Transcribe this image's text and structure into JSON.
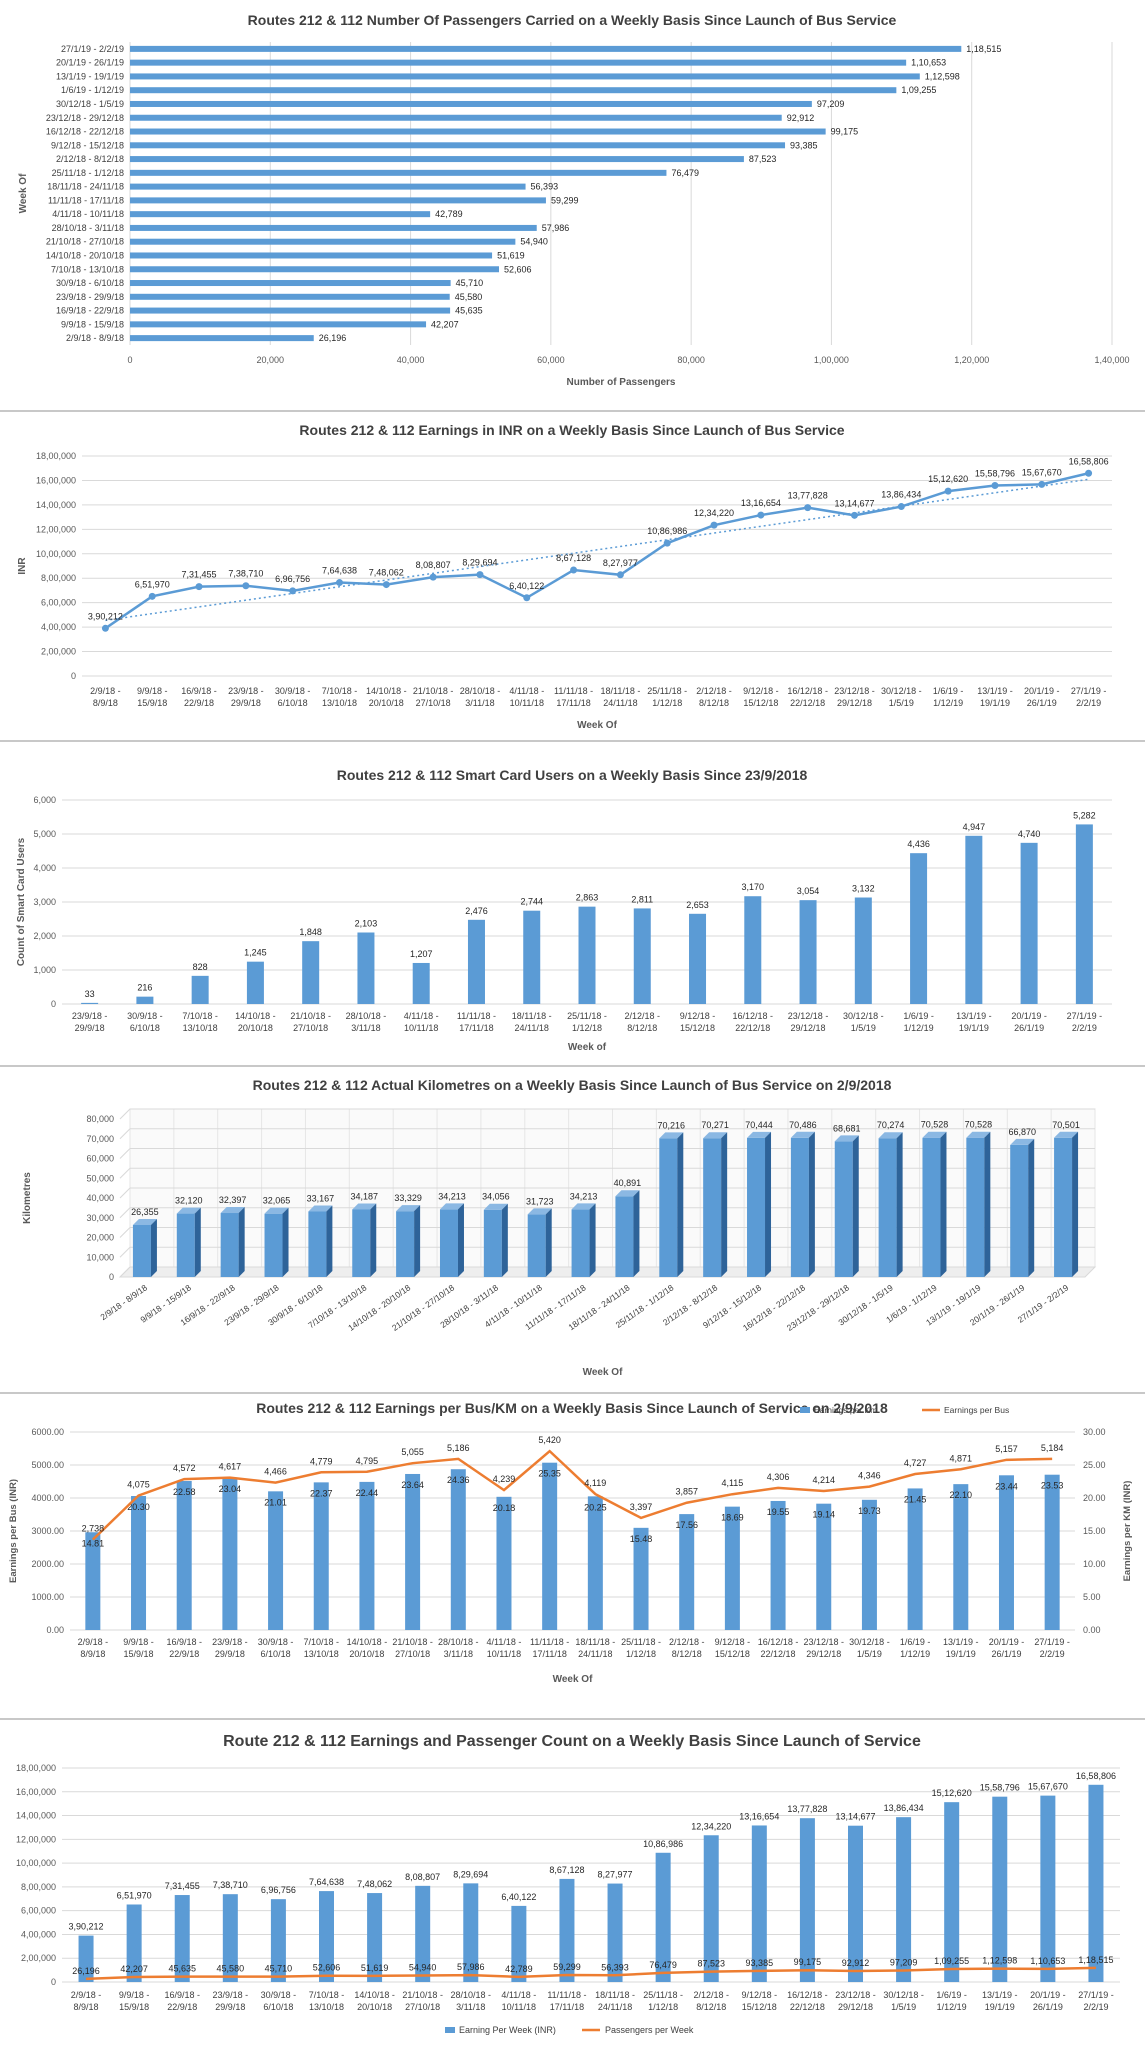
{
  "chart_data": [
    {
      "type": "bar",
      "orientation": "horizontal",
      "title": "Routes 212 & 112 Number Of Passengers Carried on a Weekly Basis Since Launch of Bus Service",
      "xlabel": "Number of Passengers",
      "ylabel": "Week Of",
      "xlim": [
        0,
        140000
      ],
      "x_ticks": [
        "0",
        "20,000",
        "40,000",
        "60,000",
        "80,000",
        "1,00,000",
        "1,20,000",
        "1,40,000"
      ],
      "categories": [
        "27/1/19 - 2/2/19",
        "20/1/19 - 26/1/19",
        "13/1/19 - 19/1/19",
        "1/6/19 - 1/12/19",
        "30/12/18 - 1/5/19",
        "23/12/18 - 29/12/18",
        "16/12/18 - 22/12/18",
        "9/12/18 - 15/12/18",
        "2/12/18 - 8/12/18",
        "25/11/18 - 1/12/18",
        "18/11/18 - 24/11/18",
        "11/11/18 - 17/11/18",
        "4/11/18 - 10/11/18",
        "28/10/18 - 3/11/18",
        "21/10/18 - 27/10/18",
        "14/10/18 - 20/10/18",
        "7/10/18 - 13/10/18",
        "30/9/18 - 6/10/18",
        "23/9/18 - 29/9/18",
        "16/9/18 - 22/9/18",
        "9/9/18 - 15/9/18",
        "2/9/18 - 8/9/18"
      ],
      "values": [
        118515,
        110653,
        112598,
        109255,
        97209,
        92912,
        99175,
        93385,
        87523,
        76479,
        56393,
        59299,
        42789,
        57986,
        54940,
        51619,
        52606,
        45710,
        45580,
        45635,
        42207,
        26196
      ],
      "labels": [
        "1,18,515",
        "1,10,653",
        "1,12,598",
        "1,09,255",
        "97,209",
        "92,912",
        "99,175",
        "93,385",
        "87,523",
        "76,479",
        "56,393",
        "59,299",
        "42,789",
        "57,986",
        "54,940",
        "51,619",
        "52,606",
        "45,710",
        "45,580",
        "45,635",
        "42,207",
        "26,196"
      ],
      "color": "#5b9bd5",
      "grid": true
    },
    {
      "type": "line",
      "title": "Routes 212 & 112 Earnings in INR on a Weekly Basis Since Launch of Bus Service",
      "xlabel": "Week Of",
      "ylabel": "INR",
      "ylim": [
        0,
        1800000
      ],
      "y_ticks": [
        "0",
        "2,00,000",
        "4,00,000",
        "6,00,000",
        "8,00,000",
        "10,00,000",
        "12,00,000",
        "14,00,000",
        "16,00,000",
        "18,00,000"
      ],
      "categories": [
        "2/9/18 - 8/9/18",
        "9/9/18 - 15/9/18",
        "16/9/18 - 22/9/18",
        "23/9/18 - 29/9/18",
        "30/9/18 - 6/10/18",
        "7/10/18 - 13/10/18",
        "14/10/18 - 20/10/18",
        "21/10/18 - 27/10/18",
        "28/10/18 - 3/11/18",
        "4/11/18 - 10/11/18",
        "11/11/18 - 17/11/18",
        "18/11/18 - 24/11/18",
        "25/11/18 - 1/12/18",
        "2/12/18 - 8/12/18",
        "9/12/18 - 15/12/18",
        "16/12/18 - 22/12/18",
        "23/12/18 - 29/12/18",
        "30/12/18 - 1/5/19",
        "1/6/19 - 1/12/19",
        "13/1/19 - 19/1/19",
        "20/1/19 - 26/1/19",
        "27/1/19 - 2/2/19"
      ],
      "values": [
        390212,
        651970,
        731455,
        738710,
        696756,
        764638,
        748062,
        808807,
        829694,
        640122,
        867128,
        827977,
        1086986,
        1234220,
        1316654,
        1377828,
        1314677,
        1386434,
        1512620,
        1558796,
        1567670,
        1658806
      ],
      "labels": [
        "3,90,212",
        "6,51,970",
        "7,31,455",
        "7,38,710",
        "6,96,756",
        "7,64,638",
        "7,48,062",
        "8,08,807",
        "8,29,694",
        "6,40,122",
        "8,67,128",
        "8,27,977",
        "10,86,986",
        "12,34,220",
        "13,16,654",
        "13,77,828",
        "13,14,677",
        "13,86,434",
        "15,12,620",
        "15,58,796",
        "15,67,670",
        "16,58,806"
      ],
      "trendline": "linear",
      "color": "#5b9bd5",
      "grid": true
    },
    {
      "type": "bar",
      "title": "Routes 212 & 112 Smart Card Users on a Weekly Basis Since 23/9/2018",
      "xlabel": "Week of",
      "ylabel": "Count of Smart Card Users",
      "ylim": [
        0,
        6000
      ],
      "y_ticks": [
        "0",
        "1,000",
        "2,000",
        "3,000",
        "4,000",
        "5,000",
        "6,000"
      ],
      "categories": [
        "23/9/18 - 29/9/18",
        "30/9/18 - 6/10/18",
        "7/10/18 - 13/10/18",
        "14/10/18 - 20/10/18",
        "21/10/18 - 27/10/18",
        "28/10/18 - 3/11/18",
        "4/11/18 - 10/11/18",
        "11/11/18 - 17/11/18",
        "18/11/18 - 24/11/18",
        "25/11/18 - 1/12/18",
        "2/12/18 - 8/12/18",
        "9/12/18 - 15/12/18",
        "16/12/18 - 22/12/18",
        "23/12/18 - 29/12/18",
        "30/12/18 - 1/5/19",
        "1/6/19 - 1/12/19",
        "13/1/19 - 19/1/19",
        "20/1/19 - 26/1/19",
        "27/1/19 - 2/2/19"
      ],
      "values": [
        33,
        216,
        828,
        1245,
        1848,
        2103,
        1207,
        2476,
        2744,
        2863,
        2811,
        2653,
        3170,
        3054,
        3132,
        4436,
        4947,
        4740,
        5282
      ],
      "labels": [
        "33",
        "216",
        "828",
        "1,245",
        "1,848",
        "2,103",
        "1,207",
        "2,476",
        "2,744",
        "2,863",
        "2,811",
        "2,653",
        "3,170",
        "3,054",
        "3,132",
        "4,436",
        "4,947",
        "4,740",
        "5,282"
      ],
      "color": "#5b9bd5",
      "grid": true
    },
    {
      "type": "bar",
      "style": "3d",
      "title": "Routes 212 & 112 Actual Kilometres on a Weekly Basis Since Launch of Bus Service on 2/9/2018",
      "xlabel": "Week Of",
      "ylabel": "Kilometres",
      "ylim": [
        0,
        80000
      ],
      "y_ticks": [
        "0",
        "10,000",
        "20,000",
        "30,000",
        "40,000",
        "50,000",
        "60,000",
        "70,000",
        "80,000"
      ],
      "categories": [
        "2/9/18 - 8/9/18",
        "9/9/18 - 15/9/18",
        "16/9/18 - 22/9/18",
        "23/9/18 - 29/9/18",
        "30/9/18 - 6/10/18",
        "7/10/18 - 13/10/18",
        "14/10/18 - 20/10/18",
        "21/10/18 - 27/10/18",
        "28/10/18 - 3/11/18",
        "4/11/18 - 10/11/18",
        "11/11/18 - 17/11/18",
        "18/11/18 - 24/11/18",
        "25/11/18 - 1/12/18",
        "2/12/18 - 8/12/18",
        "9/12/18 - 15/12/18",
        "16/12/18 - 22/12/18",
        "23/12/18 - 29/12/18",
        "30/12/18 - 1/5/19",
        "1/6/19 - 1/12/19",
        "13/1/19 - 19/1/19",
        "20/1/19 - 26/1/19",
        "27/1/19 - 2/2/19"
      ],
      "values": [
        26355,
        32120,
        32397,
        32065,
        33167,
        34187,
        33329,
        34213,
        34056,
        31723,
        34213,
        40891,
        70216,
        70271,
        70444,
        70486,
        68681,
        70274,
        70528,
        70528,
        66870,
        70501
      ],
      "labels": [
        "26,355",
        "32,120",
        "32,397",
        "32,065",
        "33,167",
        "34,187",
        "33,329",
        "34,213",
        "34,056",
        "31,723",
        "34,213",
        "40,891",
        "70,216",
        "70,271",
        "70,444",
        "70,486",
        "68,681",
        "70,274",
        "70,528",
        "70,528",
        "66,870",
        "70,501"
      ],
      "color": "#5b9bd5",
      "grid": true
    },
    {
      "type": "bar",
      "combo": "bar+line",
      "title": "Routes 212 & 112 Earnings per Bus/KM on a Weekly Basis Since Launch of Service on 2/9/2018",
      "xlabel": "Week Of",
      "ylabel_left": "Earnings per Bus (INR)",
      "ylabel_right": "Earnings per KM (INR)",
      "ylim_left": [
        0,
        6000
      ],
      "ylim_right": [
        0,
        30
      ],
      "y_ticks_left": [
        "0.00",
        "1000.00",
        "2000.00",
        "3000.00",
        "4000.00",
        "5000.00",
        "6000.00"
      ],
      "y_ticks_right": [
        "0.00",
        "5.00",
        "10.00",
        "15.00",
        "20.00",
        "25.00",
        "30.00"
      ],
      "legend": "top-right",
      "categories": [
        "2/9/18 - 8/9/18",
        "9/9/18 - 15/9/18",
        "16/9/18 - 22/9/18",
        "23/9/18 - 29/9/18",
        "30/9/18 - 6/10/18",
        "7/10/18 - 13/10/18",
        "14/10/18 - 20/10/18",
        "21/10/18 - 27/10/18",
        "28/10/18 - 3/11/18",
        "4/11/18 - 10/11/18",
        "11/11/18 - 17/11/18",
        "18/11/18 - 24/11/18",
        "25/11/18 - 1/12/18",
        "2/12/18 - 8/12/18",
        "9/12/18 - 15/12/18",
        "16/12/18 - 22/12/18",
        "23/12/18 - 29/12/18",
        "30/12/18 - 1/5/19",
        "1/6/19 - 1/12/19",
        "13/1/19 - 19/1/19",
        "20/1/19 - 26/1/19",
        "27/1/19 - 2/2/19"
      ],
      "series": [
        {
          "name": "Earnings per Km",
          "kind": "bar",
          "axis": "right",
          "color": "#5b9bd5",
          "values": [
            14.81,
            20.3,
            22.58,
            23.04,
            21.01,
            22.37,
            22.44,
            23.64,
            24.36,
            20.18,
            25.35,
            20.25,
            15.48,
            17.56,
            18.69,
            19.55,
            19.14,
            19.73,
            21.45,
            22.1,
            23.44,
            23.53
          ],
          "labels": [
            "14.81",
            "20.30",
            "22.58",
            "23.04",
            "21.01",
            "22.37",
            "22.44",
            "23.64",
            "24.36",
            "20.18",
            "25.35",
            "20.25",
            "15.48",
            "17.56",
            "18.69",
            "19.55",
            "19.14",
            "19.73",
            "21.45",
            "22.10",
            "23.44",
            "23.53"
          ]
        },
        {
          "name": "Earnings per Bus",
          "kind": "line",
          "axis": "left",
          "color": "#ed7d31",
          "values": [
            2738,
            4075,
            4572,
            4617,
            4466,
            4779,
            4795,
            5055,
            5186,
            4239,
            5420,
            4119,
            3397,
            3857,
            4115,
            4306,
            4214,
            4346,
            4727,
            4871,
            5157,
            5184
          ],
          "labels": [
            "2,738",
            "4,075",
            "4,572",
            "4,617",
            "4,466",
            "4,779",
            "4,795",
            "5,055",
            "5,186",
            "4,239",
            "5,420",
            "4,119",
            "3,397",
            "3,857",
            "4,115",
            "4,306",
            "4,214",
            "4,346",
            "4,727",
            "4,871",
            "5,157",
            "5,184"
          ]
        }
      ],
      "grid": true
    },
    {
      "type": "bar",
      "combo": "bar+line",
      "title": "Route 212 & 112 Earnings and Passenger Count on a Weekly Basis Since Launch of Service",
      "ylim": [
        0,
        1800000
      ],
      "y_ticks": [
        "0",
        "2,00,000",
        "4,00,000",
        "6,00,000",
        "8,00,000",
        "10,00,000",
        "12,00,000",
        "14,00,000",
        "16,00,000",
        "18,00,000"
      ],
      "legend": "bottom",
      "categories": [
        "2/9/18 - 8/9/18",
        "9/9/18 - 15/9/18",
        "16/9/18 - 22/9/18",
        "23/9/18 - 29/9/18",
        "30/9/18 - 6/10/18",
        "7/10/18 - 13/10/18",
        "14/10/18 - 20/10/18",
        "21/10/18 - 27/10/18",
        "28/10/18 - 3/11/18",
        "4/11/18 - 10/11/18",
        "11/11/18 - 17/11/18",
        "18/11/18 - 24/11/18",
        "25/11/18 - 1/12/18",
        "2/12/18 - 8/12/18",
        "9/12/18 - 15/12/18",
        "16/12/18 - 22/12/18",
        "23/12/18 - 29/12/18",
        "30/12/18 - 1/5/19",
        "1/6/19 - 1/12/19",
        "13/1/19 - 19/1/19",
        "20/1/19 - 26/1/19",
        "27/1/19 - 2/2/19"
      ],
      "series": [
        {
          "name": "Earning Per Week (INR)",
          "kind": "bar",
          "color": "#5b9bd5",
          "values": [
            390212,
            651970,
            731455,
            738710,
            696756,
            764638,
            748062,
            808807,
            829694,
            640122,
            867128,
            827977,
            1086986,
            1234220,
            1316654,
            1377828,
            1314677,
            1386434,
            1512620,
            1558796,
            1567670,
            1658806
          ],
          "labels": [
            "3,90,212",
            "6,51,970",
            "7,31,455",
            "7,38,710",
            "6,96,756",
            "7,64,638",
            "7,48,062",
            "8,08,807",
            "8,29,694",
            "6,40,122",
            "8,67,128",
            "8,27,977",
            "10,86,986",
            "12,34,220",
            "13,16,654",
            "13,77,828",
            "13,14,677",
            "13,86,434",
            "15,12,620",
            "15,58,796",
            "15,67,670",
            "16,58,806"
          ]
        },
        {
          "name": "Passengers per Week",
          "kind": "line",
          "color": "#ed7d31",
          "values": [
            26196,
            42207,
            45635,
            45580,
            45710,
            52606,
            51619,
            54940,
            57986,
            42789,
            59299,
            56393,
            76479,
            87523,
            93385,
            99175,
            92912,
            97209,
            109255,
            112598,
            110653,
            118515
          ],
          "labels": [
            "26,196",
            "42,207",
            "45,635",
            "45,580",
            "45,710",
            "52,606",
            "51,619",
            "54,940",
            "57,986",
            "42,789",
            "59,299",
            "56,393",
            "76,479",
            "87,523",
            "93,385",
            "99,175",
            "92,912",
            "97,209",
            "1,09,255",
            "1,12,598",
            "1,10,653",
            "1,18,515"
          ]
        }
      ],
      "grid": true
    }
  ]
}
